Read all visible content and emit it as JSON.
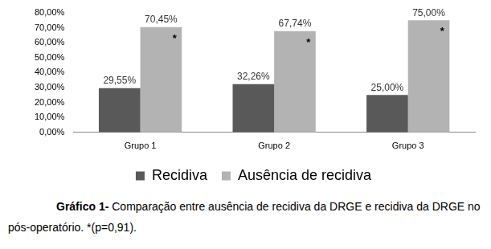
{
  "chart_data": {
    "type": "bar",
    "categories": [
      "Grupo 1",
      "Grupo 2",
      "Grupo 3"
    ],
    "series": [
      {
        "name": "Recidiva",
        "color": "#595959",
        "values": [
          29.55,
          32.26,
          25.0
        ],
        "value_labels": [
          "29,55%",
          "32,26%",
          "25,00%"
        ]
      },
      {
        "name": "Ausência de recidiva",
        "color": "#b3b3b3",
        "values": [
          70.45,
          67.74,
          75.0
        ],
        "value_labels": [
          "70,45%",
          "67,74%",
          "75,00%"
        ],
        "annotation": "*"
      }
    ],
    "ylim": [
      0,
      80
    ],
    "yticks": [
      {
        "value": 0,
        "label": "0,00%"
      },
      {
        "value": 10,
        "label": "10,00%"
      },
      {
        "value": 20,
        "label": "20,00%"
      },
      {
        "value": 30,
        "label": "30,00%"
      },
      {
        "value": 40,
        "label": "40,00%"
      },
      {
        "value": 50,
        "label": "50,00%"
      },
      {
        "value": 60,
        "label": "60,00%"
      },
      {
        "value": 70,
        "label": "70,00%"
      },
      {
        "value": 80,
        "label": "80,00%"
      }
    ],
    "grid": false,
    "legend": "bottom",
    "data_labels": true,
    "caption_label": "Gráfico 1-",
    "caption": "Comparação entre ausência de recidiva da DRGE e recidiva da DRGE no pós-operatório. *(p=0,91)."
  }
}
